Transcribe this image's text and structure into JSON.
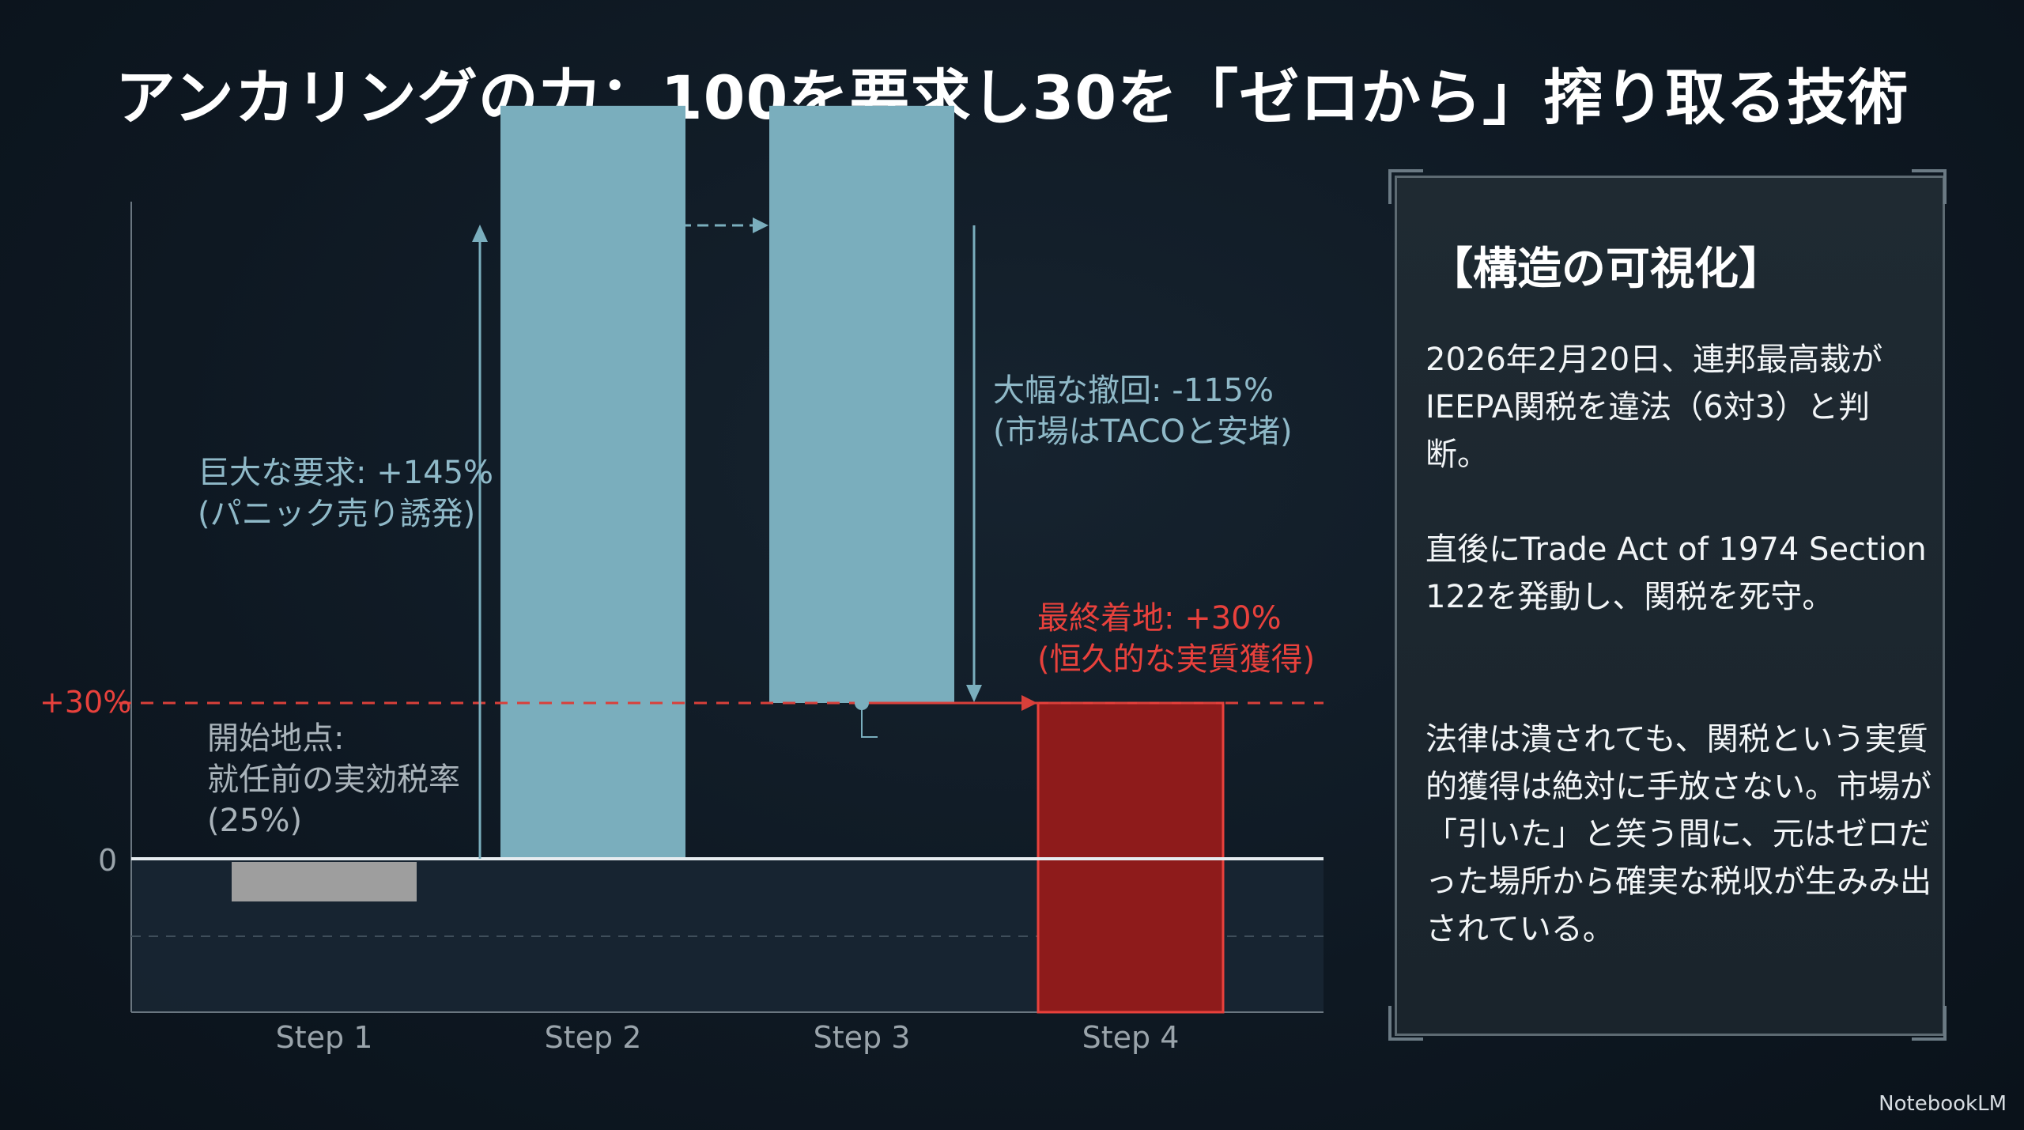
{
  "title": "アンカリングの力：100を要求し30を「ゼロから」搾り取る技術",
  "chart_data": {
    "type": "bar",
    "categories": [
      "Step 1",
      "Step 2",
      "Step 3",
      "Step 4"
    ],
    "bars": [
      {
        "step": "Step 1",
        "start": 0,
        "end": -25,
        "color": "#9e9e9e"
      },
      {
        "step": "Step 2",
        "start": 0,
        "end": 145,
        "color": "#7aaebd"
      },
      {
        "step": "Step 3",
        "start": 145,
        "end": 30,
        "color": "#7aaebd"
      },
      {
        "step": "Step 4",
        "start": 0,
        "end": 30,
        "color": "#8e1b1b"
      }
    ],
    "y_ticks": [
      "0",
      "+30%"
    ],
    "reference_line": 30,
    "ylim": [
      -35,
      150
    ]
  },
  "annotations": {
    "start": "開始地点:\n就任前の実効税率\n(25%)",
    "demand": "巨大な要求: +145%\n(パニック売り誘発)",
    "withdraw": "大幅な撤回: -115%\n(市場はTACOと安堵)",
    "final": "最終着地: +30%\n(恒久的な実質獲得)"
  },
  "panel": {
    "title": "【構造の可視化】",
    "p1": "2026年2月20日、連邦最高裁がIEEPA関税を違法（6対3）と判断。",
    "p2": "直後にTrade Act of 1974 Section 122を発動し、関税を死守。",
    "p3": "法律は潰されても、関税という実質的獲得は絶対に手放さない。市場が「引いた」と笑う間に、元はゼロだった場所から確実な税収が生みみ出されている。"
  },
  "logo": "NotebookLM",
  "colors": {
    "accent_red": "#e8413c",
    "bar_blue": "#7aaebd",
    "bar_red": "#8e1b1b",
    "bar_gray": "#9e9e9e"
  }
}
